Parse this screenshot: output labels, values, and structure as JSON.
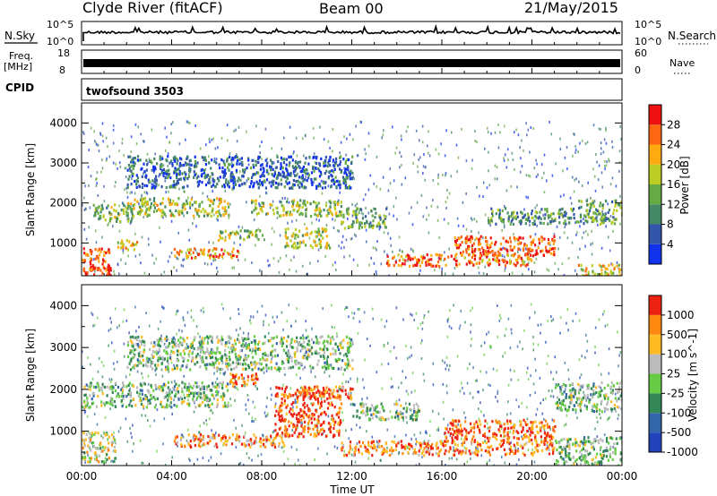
{
  "header": {
    "station": "Clyde River (fitACF)",
    "beam": "Beam 00",
    "date": "21/May/2015"
  },
  "top_strips": {
    "nsky_label": "N.Sky",
    "nsky_ticks": [
      "10^5",
      "10^0"
    ],
    "nsearch_label": "N.Search",
    "nsearch_ticks": [
      "10^5",
      "10^0"
    ],
    "freq_label": "Freq.",
    "freq_unit": "[MHz]",
    "freq_ticks": [
      "18",
      "8"
    ],
    "nave_label": "Nave",
    "nave_ticks": [
      "60",
      "0"
    ],
    "cpid_label": "CPID",
    "cpid_value": "twofsound 3503"
  },
  "time_axis": {
    "ticks": [
      "00:00",
      "04:00",
      "08:00",
      "12:00",
      "16:00",
      "20:00",
      "00:00"
    ],
    "label": "Time UT"
  },
  "chart_data": [
    {
      "type": "heatmap",
      "parameter": "Power",
      "ylabel": "Slant Range [km]",
      "yticks": [
        "1000",
        "2000",
        "3000",
        "4000"
      ],
      "ylim": [
        180,
        4500
      ],
      "colorbar": {
        "label": "Power [dB]",
        "ticks": [
          "4",
          "8",
          "12",
          "16",
          "20",
          "24",
          "28"
        ],
        "colors": [
          "#1133ee",
          "#3355aa",
          "#448866",
          "#66aa44",
          "#bbcc22",
          "#ffaa11",
          "#ff6611",
          "#ee1111"
        ]
      },
      "bands": [
        {
          "t0": 0,
          "t1": 1.2,
          "r0": 300,
          "r1": 900,
          "level": 0.85
        },
        {
          "t0": 0,
          "t1": 1.3,
          "r0": 180,
          "r1": 450,
          "level": 0.95
        },
        {
          "t0": 1.5,
          "t1": 2.5,
          "r0": 850,
          "r1": 1100,
          "level": 0.6
        },
        {
          "t0": 0.5,
          "t1": 2.3,
          "r0": 1550,
          "r1": 2000,
          "level": 0.45
        },
        {
          "t0": 2,
          "t1": 6.5,
          "r0": 1700,
          "r1": 2150,
          "level": 0.55
        },
        {
          "t0": 4,
          "t1": 7,
          "r0": 650,
          "r1": 900,
          "level": 0.75
        },
        {
          "t0": 6,
          "t1": 8,
          "r0": 1100,
          "r1": 1350,
          "level": 0.5
        },
        {
          "t0": 7.5,
          "t1": 11.5,
          "r0": 1700,
          "r1": 2100,
          "level": 0.5
        },
        {
          "t0": 9,
          "t1": 11,
          "r0": 900,
          "r1": 1400,
          "level": 0.55
        },
        {
          "t0": 11.5,
          "t1": 13.5,
          "r0": 1400,
          "r1": 1900,
          "level": 0.4
        },
        {
          "t0": 13.5,
          "t1": 20,
          "r0": 450,
          "r1": 750,
          "level": 0.8
        },
        {
          "t0": 16.5,
          "t1": 21,
          "r0": 700,
          "r1": 1200,
          "level": 0.85
        },
        {
          "t0": 18,
          "t1": 22,
          "r0": 1500,
          "r1": 1900,
          "level": 0.35
        },
        {
          "t0": 22,
          "t1": 24,
          "r0": 1500,
          "r1": 2100,
          "level": 0.4
        },
        {
          "t0": 2,
          "t1": 12,
          "r0": 2400,
          "r1": 3200,
          "level": 0.2
        },
        {
          "t0": 22,
          "t1": 24,
          "r0": 200,
          "r1": 500,
          "level": 0.6
        }
      ]
    },
    {
      "type": "heatmap",
      "parameter": "Velocity",
      "ylabel": "Slant Range [km]",
      "yticks": [
        "1000",
        "2000",
        "3000",
        "4000"
      ],
      "ylim": [
        180,
        4500
      ],
      "colorbar": {
        "label": "Velocity [m s^-1]",
        "ticks": [
          "1000",
          "500",
          "100",
          "25",
          "-25",
          "-100",
          "-500",
          "-1000"
        ],
        "colors": [
          "#2244bb",
          "#3366aa",
          "#338855",
          "#66cc44",
          "#bbbbbb",
          "#ffbb22",
          "#ff8811",
          "#ee2211"
        ]
      },
      "bands": [
        {
          "t0": 0,
          "t1": 1.5,
          "r0": 300,
          "r1": 1000,
          "level": 0.55
        },
        {
          "t0": 0,
          "t1": 6.5,
          "r0": 1600,
          "r1": 2200,
          "level": 0.45
        },
        {
          "t0": 4,
          "t1": 9,
          "r0": 650,
          "r1": 950,
          "level": 0.8
        },
        {
          "t0": 6.5,
          "t1": 8,
          "r0": 2100,
          "r1": 2400,
          "level": 0.85
        },
        {
          "t0": 8.5,
          "t1": 11.5,
          "r0": 900,
          "r1": 2100,
          "level": 0.9
        },
        {
          "t0": 9.5,
          "t1": 12,
          "r0": 1800,
          "r1": 2100,
          "level": 0.8
        },
        {
          "t0": 11.5,
          "t1": 21,
          "r0": 450,
          "r1": 800,
          "level": 0.8
        },
        {
          "t0": 16,
          "t1": 21,
          "r0": 800,
          "r1": 1300,
          "level": 0.9
        },
        {
          "t0": 12,
          "t1": 15,
          "r0": 1300,
          "r1": 1700,
          "level": 0.45
        },
        {
          "t0": 21,
          "t1": 24,
          "r0": 1500,
          "r1": 2200,
          "level": 0.45
        },
        {
          "t0": 21,
          "t1": 24,
          "r0": 200,
          "r1": 900,
          "level": 0.45
        },
        {
          "t0": 2,
          "t1": 12,
          "r0": 2500,
          "r1": 3300,
          "level": 0.45
        }
      ]
    }
  ]
}
